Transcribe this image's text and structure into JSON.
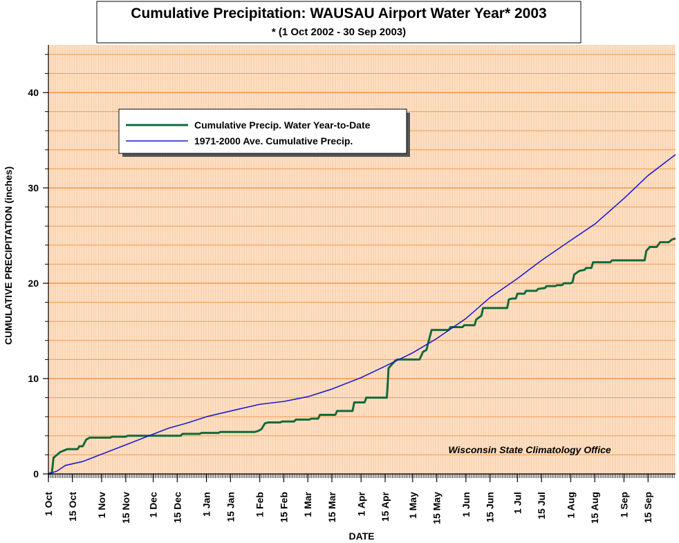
{
  "chart_data": {
    "type": "line",
    "title": "Cumulative Precipitation: WAUSAU Airport Water Year* 2003",
    "subtitle": "* (1 Oct 2002 - 30 Sep 2003)",
    "x_label": "DATE",
    "y_label": "CUMULATIVE PRECIPITATION (inches)",
    "annotation": "Wisconsin State Climatology Office",
    "xlim": [
      0,
      365
    ],
    "xticks": [
      {
        "value": 0,
        "label": "1 Oct"
      },
      {
        "value": 14,
        "label": "15 Oct"
      },
      {
        "value": 31,
        "label": "1 Nov"
      },
      {
        "value": 45,
        "label": "15 Nov"
      },
      {
        "value": 61,
        "label": "1 Dec"
      },
      {
        "value": 75,
        "label": "15 Dec"
      },
      {
        "value": 92,
        "label": "1 Jan"
      },
      {
        "value": 106,
        "label": "15 Jan"
      },
      {
        "value": 123,
        "label": "1 Feb"
      },
      {
        "value": 137,
        "label": "15 Feb"
      },
      {
        "value": 151,
        "label": "1 Mar"
      },
      {
        "value": 165,
        "label": "15 Mar"
      },
      {
        "value": 182,
        "label": "1 Apr"
      },
      {
        "value": 196,
        "label": "15 Apr"
      },
      {
        "value": 212,
        "label": "1 May"
      },
      {
        "value": 226,
        "label": "15 May"
      },
      {
        "value": 243,
        "label": "1 Jun"
      },
      {
        "value": 257,
        "label": "15 Jun"
      },
      {
        "value": 273,
        "label": "1 Jul"
      },
      {
        "value": 287,
        "label": "15 Jul"
      },
      {
        "value": 304,
        "label": "1 Aug"
      },
      {
        "value": 318,
        "label": "15 Aug"
      },
      {
        "value": 335,
        "label": "1 Sep"
      },
      {
        "value": 349,
        "label": "15 Sep"
      }
    ],
    "ylim": [
      0,
      45
    ],
    "yticks": [
      0,
      10,
      20,
      30,
      40
    ],
    "minor_yticks": [
      2,
      4,
      6,
      8,
      12,
      14,
      16,
      18,
      22,
      24,
      26,
      28,
      32,
      34,
      36,
      38,
      42,
      44
    ],
    "grid": true,
    "legend": "upper left",
    "series": [
      {
        "name": "Cumulative Precip.  Water Year-to-Date",
        "color": "#11693a",
        "x": [
          0,
          2,
          3,
          5,
          7,
          11,
          17,
          18,
          20,
          22,
          24,
          36,
          37,
          45,
          46,
          77,
          78,
          88,
          89,
          99,
          100,
          120,
          122,
          124,
          126,
          128,
          135,
          136,
          143,
          144,
          152,
          153,
          157,
          158,
          167,
          168,
          177,
          178,
          184,
          185,
          196,
          197,
          198,
          200,
          202,
          203,
          216,
          218,
          220,
          223,
          233,
          234,
          241,
          242,
          248,
          249,
          252,
          253,
          267,
          268,
          270,
          272,
          273,
          277,
          278,
          284,
          285,
          289,
          290,
          295,
          296,
          299,
          300,
          304,
          305,
          306,
          309,
          312,
          313,
          316,
          317,
          327,
          328,
          347,
          348,
          350,
          354,
          356,
          361,
          363,
          365
        ],
        "values": [
          0,
          0.1,
          1.7,
          2.0,
          2.3,
          2.6,
          2.6,
          2.9,
          2.9,
          3.6,
          3.8,
          3.8,
          3.9,
          3.9,
          4.0,
          4.0,
          4.2,
          4.2,
          4.3,
          4.3,
          4.4,
          4.4,
          4.5,
          4.7,
          5.3,
          5.4,
          5.4,
          5.5,
          5.5,
          5.7,
          5.7,
          5.8,
          5.8,
          6.2,
          6.2,
          6.6,
          6.6,
          7.5,
          7.5,
          8.0,
          8.0,
          8.0,
          11.1,
          11.5,
          11.9,
          12.0,
          12.0,
          12.8,
          13.0,
          15.1,
          15.1,
          15.4,
          15.4,
          15.6,
          15.6,
          16.2,
          16.6,
          17.4,
          17.4,
          18.3,
          18.4,
          18.4,
          18.9,
          18.9,
          19.2,
          19.2,
          19.4,
          19.5,
          19.7,
          19.7,
          19.8,
          19.8,
          20.0,
          20.0,
          20.1,
          20.9,
          21.3,
          21.4,
          21.6,
          21.6,
          22.2,
          22.2,
          22.4,
          22.4,
          23.4,
          23.8,
          23.8,
          24.3,
          24.3,
          24.6,
          24.7
        ]
      },
      {
        "name": "1971-2000 Ave. Cumulative Precip.",
        "color": "#1a1ad0",
        "x": [
          0,
          5,
          10,
          20,
          30,
          40,
          50,
          60,
          70,
          80,
          92,
          106,
          123,
          137,
          151,
          165,
          182,
          196,
          212,
          226,
          243,
          257,
          273,
          287,
          304,
          318,
          335,
          349,
          365
        ],
        "values": [
          0,
          0.3,
          0.9,
          1.3,
          2.0,
          2.7,
          3.4,
          4.1,
          4.8,
          5.3,
          6.0,
          6.6,
          7.3,
          7.6,
          8.1,
          8.9,
          10.1,
          11.3,
          12.7,
          14.2,
          16.3,
          18.5,
          20.5,
          22.4,
          24.5,
          26.2,
          28.9,
          31.3,
          33.5
        ]
      }
    ]
  }
}
